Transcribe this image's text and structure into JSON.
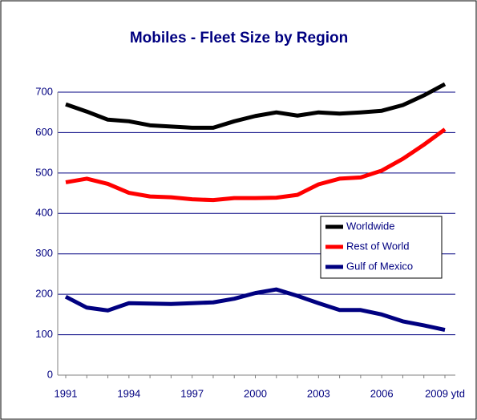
{
  "chart_data": {
    "type": "line",
    "title": "Mobiles - Fleet Size by Region",
    "categories": [
      "1991",
      null,
      null,
      "1994",
      null,
      null,
      "1997",
      null,
      null,
      "2000",
      null,
      null,
      "2003",
      null,
      null,
      "2006",
      null,
      null,
      "2009 ytd"
    ],
    "series": [
      {
        "name": "Worldwide",
        "color": "#000000",
        "values": [
          670,
          652,
          632,
          628,
          618,
          615,
          612,
          612,
          628,
          641,
          650,
          642,
          650,
          647,
          650,
          654,
          668,
          692,
          720
        ]
      },
      {
        "name": "Rest of World",
        "color": "#ff0000",
        "values": [
          477,
          486,
          473,
          451,
          442,
          440,
          435,
          433,
          438,
          438,
          439,
          446,
          472,
          486,
          489,
          506,
          535,
          570,
          608
        ]
      },
      {
        "name": "Gulf of Mexico",
        "color": "#000080",
        "values": [
          194,
          167,
          160,
          178,
          177,
          176,
          178,
          180,
          189,
          203,
          212,
          196,
          178,
          161,
          161,
          150,
          133,
          123,
          112
        ]
      }
    ],
    "ylim": [
      0,
      700
    ],
    "yticks": [
      0,
      100,
      200,
      300,
      400,
      500,
      600,
      700
    ],
    "grid": true,
    "legend": "right"
  }
}
